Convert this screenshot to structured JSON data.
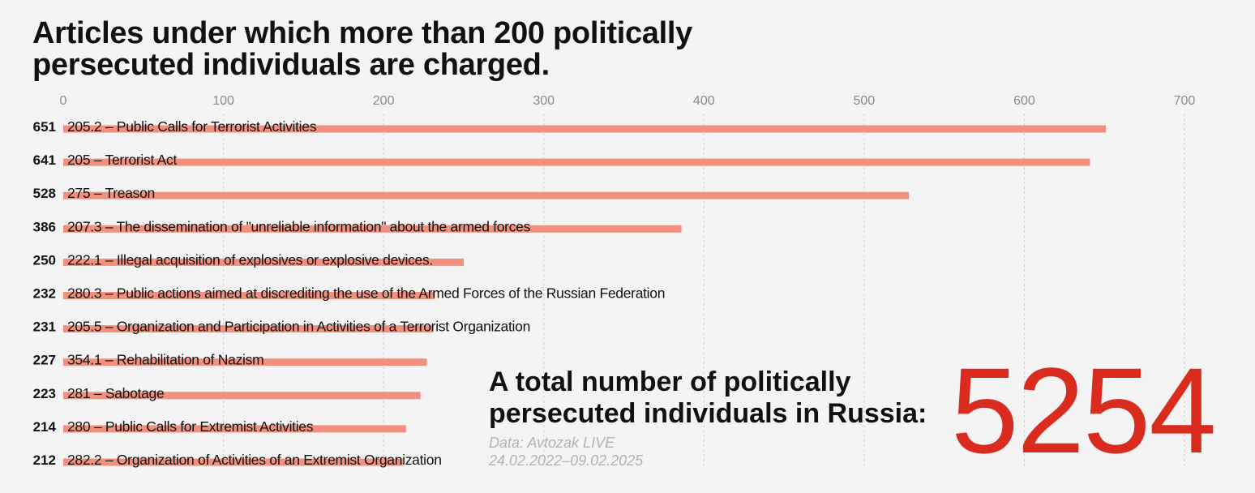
{
  "title": "Articles under which more than 200 politically\npersecuted individuals are charged.",
  "summary": {
    "label": "A total number of politically\npersecuted individuals in Russia:",
    "value": "5254",
    "source": "Data: Avtozak LIVE",
    "period": "24.02.2022–09.02.2025"
  },
  "colors": {
    "bar": "#f0907d",
    "total": "#d92b1e",
    "grid": "#cfcfcf",
    "tick": "#8a8a8a",
    "source": "#b3b3b3"
  },
  "chart_data": {
    "type": "bar",
    "orientation": "horizontal",
    "xlim": [
      0,
      700
    ],
    "xticks": [
      0,
      100,
      200,
      300,
      400,
      500,
      600,
      700
    ],
    "grid": true,
    "categories": [
      "205.2 – Public Calls for Terrorist Activities",
      "205 – Terrorist Act",
      "275 – Treason",
      "207.3 – The dissemination of \"unreliable information\" about the armed forces",
      "222.1 – Illegal acquisition of explosives or explosive devices.",
      "280.3 – Public actions aimed at discrediting the use of the Armed Forces of the Russian Federation",
      "205.5 – Organization and Participation in Activities of a Terrorist Organization",
      "354.1 – Rehabilitation of Nazism",
      "281 – Sabotage",
      "280 – Public Calls for Extremist Activities",
      "282.2 – Organization of Activities of an Extremist Organization"
    ],
    "values": [
      651,
      641,
      528,
      386,
      250,
      232,
      231,
      227,
      223,
      214,
      212
    ],
    "value_labels": [
      "651",
      "641",
      "528",
      "386",
      "250",
      "232",
      "231",
      "227",
      "223",
      "214",
      "212"
    ]
  }
}
